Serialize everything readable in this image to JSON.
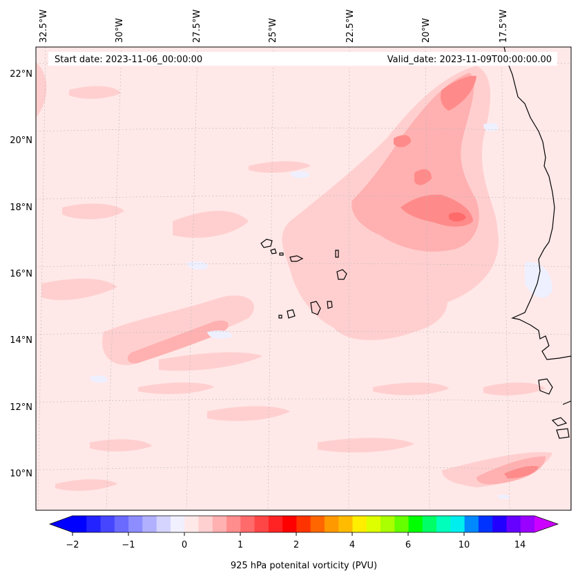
{
  "map": {
    "start_date_label": "Start date: 2023-11-06_00:00:00",
    "valid_date_label": "Valid_date: 2023-11-09T00:00:00.00",
    "lon_labels": [
      "32.5°W",
      "30°W",
      "27.5°W",
      "25°W",
      "22.5°W",
      "20°W",
      "17.5°W"
    ],
    "lat_labels": [
      "22°N",
      "20°N",
      "18°N",
      "16°N",
      "14°N",
      "12°N",
      "10°N"
    ],
    "colors": {
      "background_field": "#ffe8e8",
      "weak_positive": "#ffcfcf",
      "moderate_positive": "#ffb0b0",
      "strong_positive": "#ff8a8a",
      "max_positive": "#ff6a6a",
      "weak_negative": "#eef0ff",
      "coastline": "#000000"
    }
  },
  "colorbar": {
    "title": "925 hPa potenital vorticity (PVU)",
    "tick_labels": [
      "−2",
      "−1",
      "0",
      "1",
      "2",
      "4",
      "6",
      "10",
      "14"
    ],
    "colors": [
      "#0000ff",
      "#2323ff",
      "#4646ff",
      "#6a6aff",
      "#8d8dff",
      "#b0b0ff",
      "#d4d4ff",
      "#f0f0ff",
      "#ffe8e8",
      "#ffd0d0",
      "#ffb0b0",
      "#ff8d8d",
      "#ff6a6a",
      "#ff4646",
      "#ff2323",
      "#ff0000",
      "#ff3300",
      "#ff6600",
      "#ff9900",
      "#ffbb00",
      "#ffee00",
      "#ddff00",
      "#aaff00",
      "#66ff00",
      "#00ff00",
      "#00ff66",
      "#00ffbb",
      "#00eeee",
      "#0088ff",
      "#0033ff",
      "#2200ff",
      "#6600ff",
      "#9900ff"
    ],
    "extend_low_color": "#0000ff",
    "extend_high_color": "#cc00ff"
  }
}
